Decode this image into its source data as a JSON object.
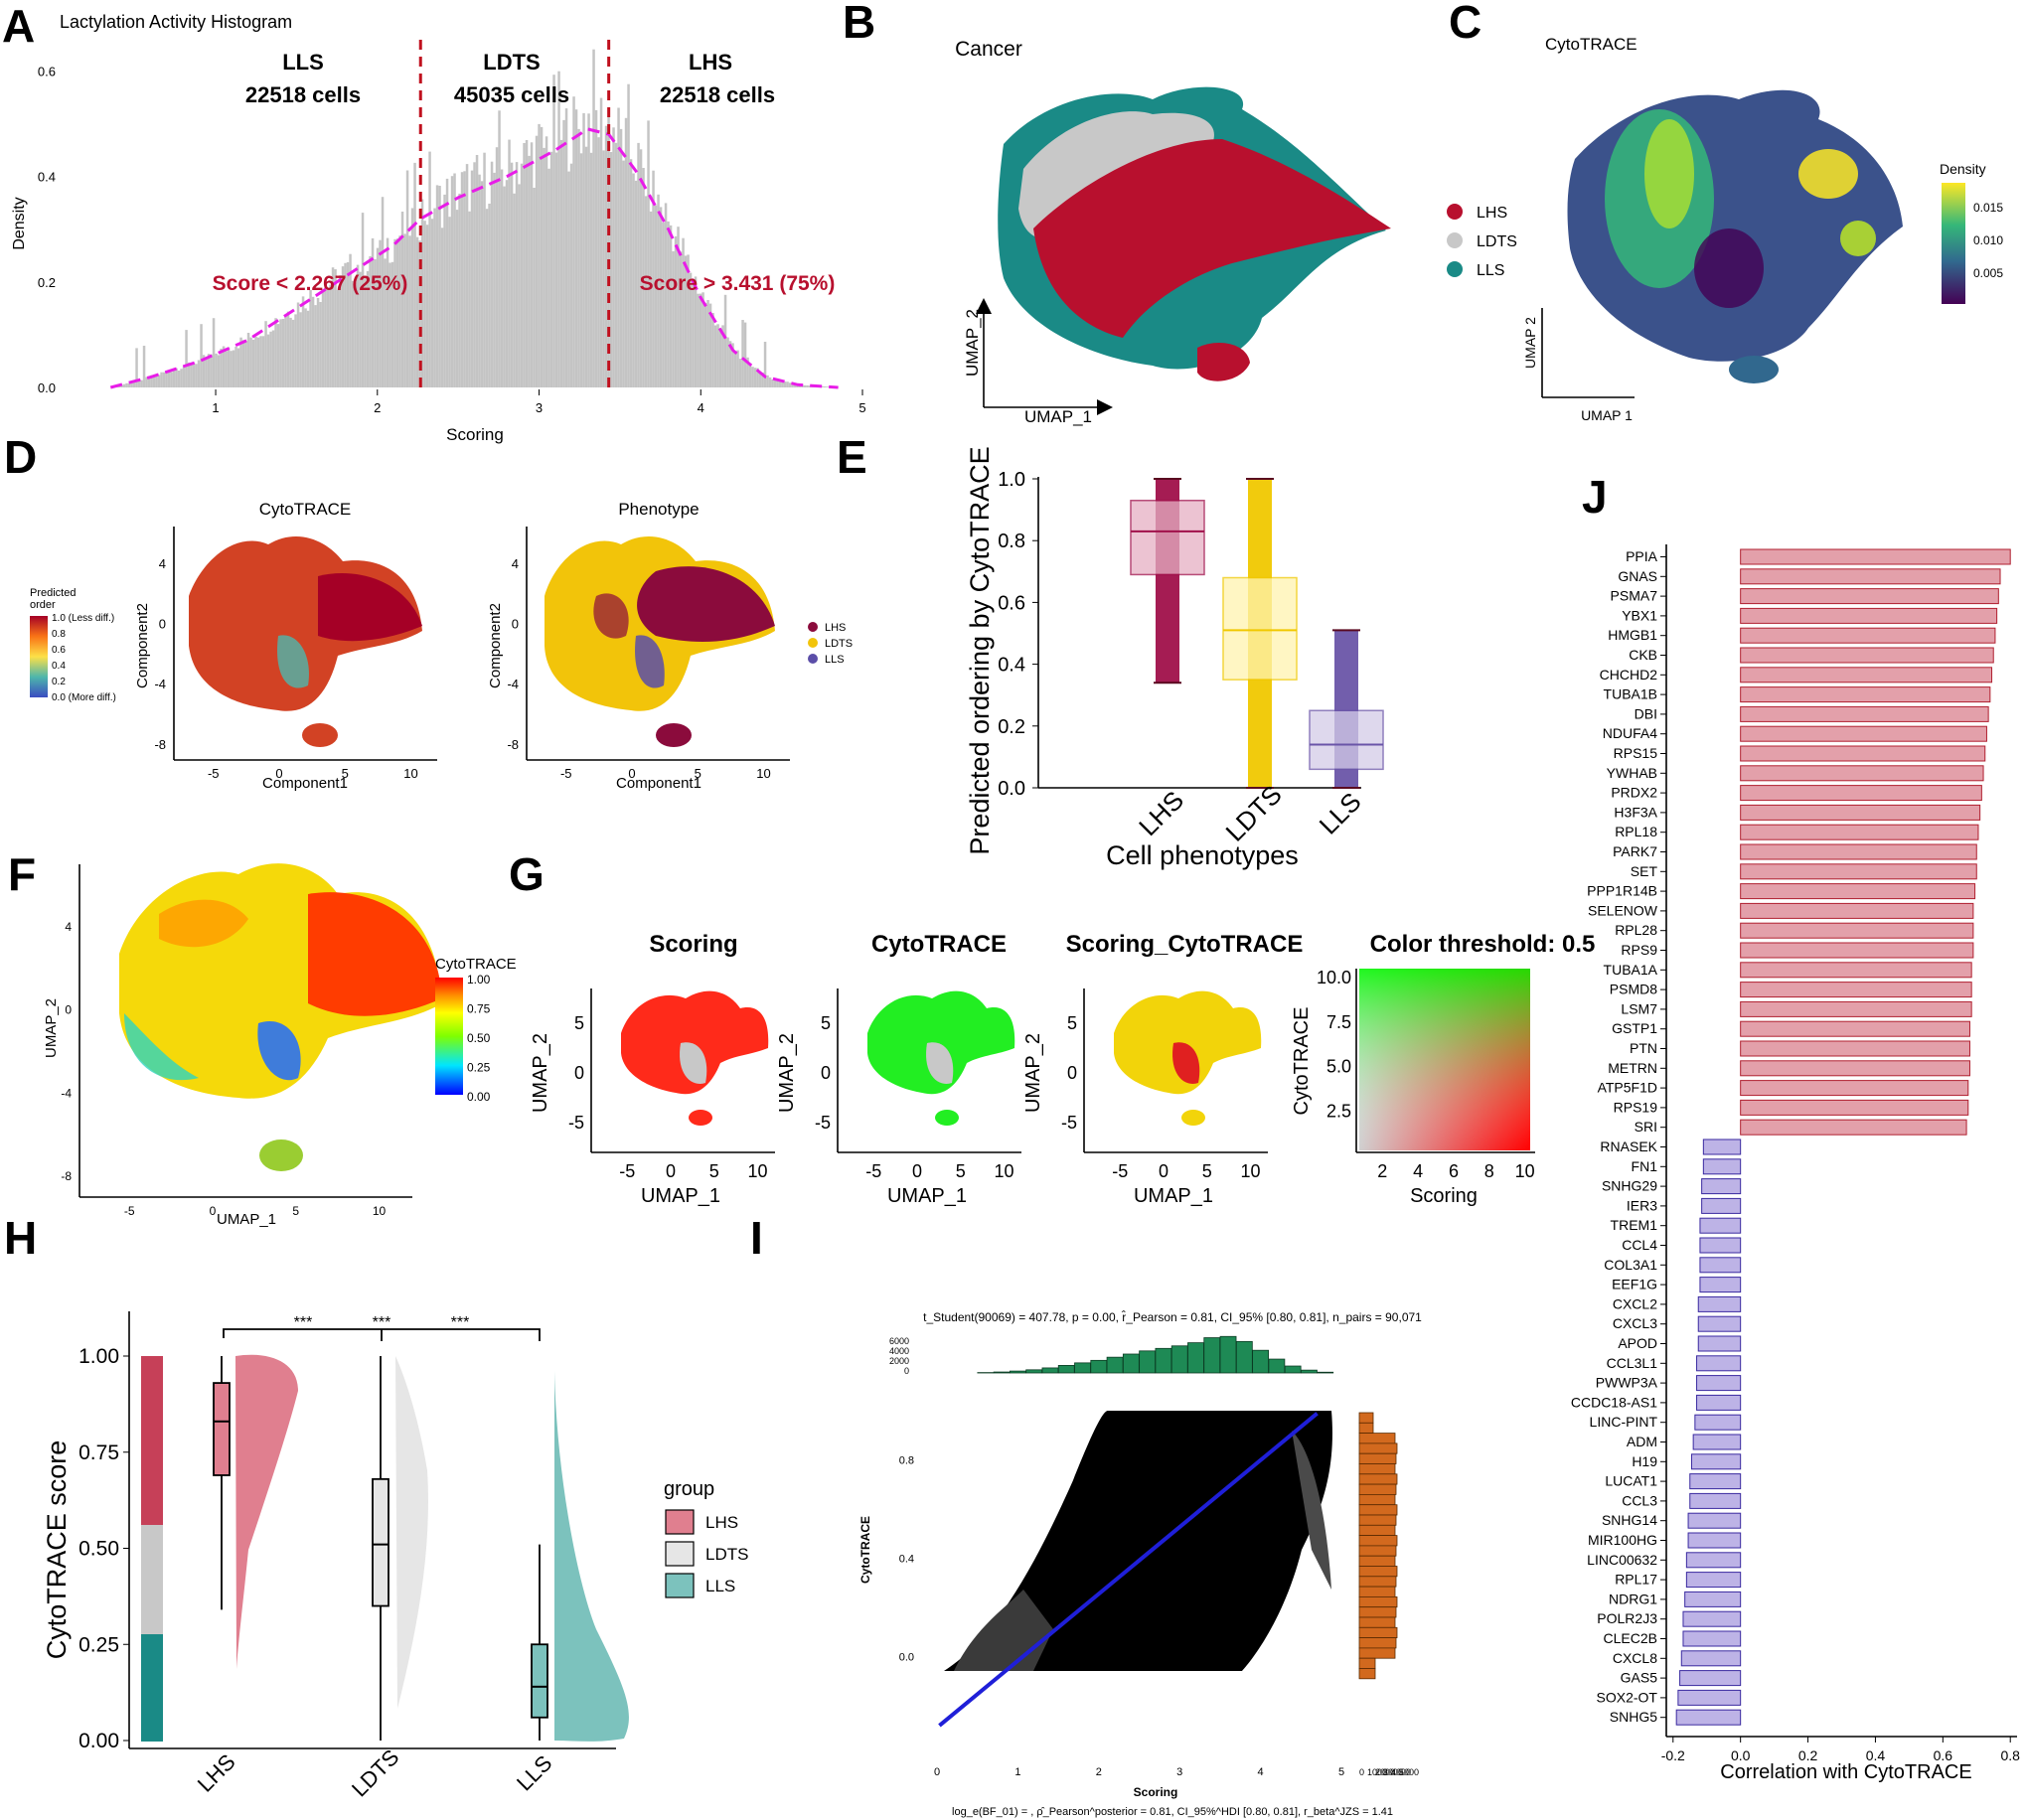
{
  "colors": {
    "lhs": "#b8102e",
    "ldts": "#c8c8c8",
    "lls": "#1a8a86",
    "magenta": "#e81ce8",
    "red_dash": "#c0101e",
    "gray_bar": "#c4c4c4",
    "green_hist": "#1e8a55",
    "orange_hist": "#d2691e",
    "blue_line": "#1f1fd8",
    "pos_bar": "#e3a0aa",
    "neg_bar": "#bdb3e6"
  },
  "panels": {
    "A": "A",
    "B": "B",
    "C": "C",
    "D": "D",
    "E": "E",
    "F": "F",
    "G": "G",
    "H": "H",
    "I": "I",
    "J": "J"
  },
  "chart_data": [
    {
      "panel": "A",
      "type": "bar",
      "title": "Lactylation Activity Histogram",
      "xlabel": "Scoring",
      "ylabel": "Density",
      "xlim": [
        0.25,
        5.0
      ],
      "ylim": [
        0,
        0.65
      ],
      "xticks": [
        "1",
        "2",
        "3",
        "4",
        "5"
      ],
      "yticks": [
        "0.0",
        "0.2",
        "0.4",
        "0.6"
      ],
      "density_curve": {
        "x": [
          0.35,
          0.6,
          0.9,
          1.2,
          1.5,
          1.8,
          2.1,
          2.267,
          2.5,
          2.8,
          3.1,
          3.3,
          3.431,
          3.6,
          3.8,
          4.0,
          4.2,
          4.4,
          4.6,
          4.85
        ],
        "y": [
          0.0,
          0.02,
          0.05,
          0.09,
          0.15,
          0.21,
          0.27,
          0.32,
          0.36,
          0.4,
          0.45,
          0.49,
          0.48,
          0.41,
          0.3,
          0.17,
          0.07,
          0.02,
          0.005,
          0.0
        ]
      },
      "thresholds": [
        2.267,
        3.431
      ],
      "groups": [
        {
          "name": "LLS",
          "cells": "22518 cells"
        },
        {
          "name": "LDTS",
          "cells": "45035 cells"
        },
        {
          "name": "LHS",
          "cells": "22518 cells"
        }
      ],
      "annotations": [
        "Score < 2.267 (25%)",
        "Score > 3.431 (75%)"
      ]
    },
    {
      "panel": "B",
      "type": "scatter",
      "title": "Cancer",
      "xlabel": "UMAP_1",
      "ylabel": "UMAP_2",
      "legend": [
        "LHS",
        "LDTS",
        "LLS"
      ]
    },
    {
      "panel": "C",
      "type": "scatter",
      "title": "CytoTRACE",
      "xlabel": "UMAP 1",
      "ylabel": "UMAP 2",
      "legend_title": "Density",
      "legend_ticks": [
        "0.015",
        "0.010",
        "0.005"
      ]
    },
    {
      "panel": "D1",
      "type": "scatter",
      "title": "CytoTRACE",
      "xlabel": "Component1",
      "ylabel": "Component2",
      "xticks": [
        "-5",
        "0",
        "5",
        "10"
      ],
      "yticks": [
        "4",
        "0",
        "-4",
        "-8"
      ],
      "legend_title": "Predicted\norder",
      "legend_ticks": [
        "1.0 (Less diff.)",
        "0.8",
        "0.6",
        "0.4",
        "0.2",
        "0.0 (More diff.)"
      ]
    },
    {
      "panel": "D2",
      "type": "scatter",
      "title": "Phenotype",
      "xlabel": "Component1",
      "ylabel": "Component2",
      "xticks": [
        "-5",
        "0",
        "5",
        "10"
      ],
      "yticks": [
        "4",
        "0",
        "-4",
        "-8"
      ],
      "legend": [
        "LHS",
        "LDTS",
        "LLS"
      ]
    },
    {
      "panel": "E",
      "type": "box",
      "xlabel": "Cell phenotypes",
      "ylabel": "Predicted ordering by CytoTRACE",
      "ylim": [
        0,
        1
      ],
      "yticks": [
        "0.0",
        "0.2",
        "0.4",
        "0.6",
        "0.8",
        "1.0"
      ],
      "categories": [
        "LHS",
        "LDTS",
        "LLS"
      ],
      "boxes": [
        {
          "name": "LHS",
          "q1": 0.69,
          "median": 0.83,
          "q3": 0.93,
          "lo": 0.34,
          "hi": 1.0
        },
        {
          "name": "LDTS",
          "q1": 0.35,
          "median": 0.51,
          "q3": 0.68,
          "lo": 0.0,
          "hi": 1.0
        },
        {
          "name": "LLS",
          "q1": 0.06,
          "median": 0.14,
          "q3": 0.25,
          "lo": 0.0,
          "hi": 0.51
        }
      ]
    },
    {
      "panel": "F",
      "type": "scatter",
      "xlabel": "UMAP_1",
      "ylabel": "UMAP_2",
      "xticks": [
        "-5",
        "0",
        "5",
        "10"
      ],
      "yticks": [
        "4",
        "0",
        "-4",
        "-8"
      ],
      "legend_title": "CytoTRACE",
      "legend_ticks": [
        "1.00",
        "0.75",
        "0.50",
        "0.25",
        "0.00"
      ]
    },
    {
      "panel": "G",
      "type": "scatter",
      "subplots": [
        "Scoring",
        "CytoTRACE",
        "Scoring_CytoTRACE"
      ],
      "xlabel": "UMAP_1",
      "ylabel": "UMAP_2",
      "xticks": [
        "-5",
        "0",
        "5",
        "10"
      ],
      "yticks": [
        "5",
        "0",
        "-5"
      ],
      "colormap_title": "Color threshold: 0.5",
      "colormap_xlabel": "Scoring",
      "colormap_ylabel": "CytoTRACE",
      "colormap_xticks": [
        "2",
        "4",
        "6",
        "8",
        "10"
      ],
      "colormap_yticks": [
        "10.0",
        "7.5",
        "5.0",
        "2.5"
      ]
    },
    {
      "panel": "H",
      "type": "box",
      "ylabel": "CytoTRACE score",
      "ylim": [
        0,
        1
      ],
      "yticks": [
        "1.00",
        "0.75",
        "0.50",
        "0.25",
        "0.00"
      ],
      "categories": [
        "LHS",
        "LDTS",
        "LLS"
      ],
      "legend_title": "group",
      "significance": [
        "***",
        "***",
        "***"
      ],
      "boxes": [
        {
          "name": "LHS",
          "q1": 0.69,
          "median": 0.83,
          "q3": 0.93,
          "lo": 0.34,
          "hi": 1.0
        },
        {
          "name": "LDTS",
          "q1": 0.35,
          "median": 0.51,
          "q3": 0.68,
          "lo": 0.0,
          "hi": 1.0
        },
        {
          "name": "LLS",
          "q1": 0.06,
          "median": 0.14,
          "q3": 0.25,
          "lo": 0.0,
          "hi": 0.51
        }
      ]
    },
    {
      "panel": "I",
      "type": "scatter",
      "xlabel": "Scoring",
      "ylabel": "CytoTRACE",
      "xticks": [
        "0",
        "1",
        "2",
        "3",
        "4",
        "5"
      ],
      "yticks": [
        "0.8",
        "0.4",
        "0.0"
      ],
      "top_hist_ticks": [
        "6000",
        "4000",
        "2000",
        "0"
      ],
      "side_hist_ticks": [
        "0",
        "1000",
        "2000",
        "3000",
        "4000",
        "5000"
      ],
      "stats_top": "t_Student(90069) = 407.78, p = 0.00, r̂_Pearson = 0.81, CI_95% [0.80, 0.81], n_pairs = 90,071",
      "stats_bottom": "log_e(BF_01) = , ρ̂_Pearson^posterior = 0.81, CI_95%^HDI [0.80, 0.81], r_beta^JZS = 1.41",
      "regression": {
        "x": [
          0,
          5
        ],
        "y": [
          -0.28,
          1.07
        ]
      },
      "top_hist": {
        "x": [
          0.6,
          0.8,
          1.0,
          1.2,
          1.4,
          1.6,
          1.8,
          2.0,
          2.2,
          2.4,
          2.6,
          2.8,
          3.0,
          3.2,
          3.4,
          3.6,
          3.8,
          4.0,
          4.2,
          4.4,
          4.6,
          4.8
        ],
        "y": [
          60,
          150,
          300,
          500,
          800,
          1200,
          1600,
          2000,
          2500,
          3000,
          3500,
          3900,
          4300,
          4800,
          5600,
          5800,
          5000,
          3600,
          2200,
          1100,
          450,
          120
        ]
      }
    },
    {
      "panel": "J",
      "type": "bar",
      "xlabel": "Correlation with CytoTRACE",
      "xlim": [
        -0.22,
        0.82
      ],
      "xticks": [
        "-0.2",
        "0.0",
        "0.2",
        "0.4",
        "0.6",
        "0.8"
      ],
      "categories": [
        "PPIA",
        "GNAS",
        "PSMA7",
        "YBX1",
        "HMGB1",
        "CKB",
        "CHCHD2",
        "TUBA1B",
        "DBI",
        "NDUFA4",
        "RPS15",
        "YWHAB",
        "PRDX2",
        "H3F3A",
        "RPL18",
        "PARK7",
        "SET",
        "PPP1R14B",
        "SELENOW",
        "RPL28",
        "RPS9",
        "TUBA1A",
        "PSMD8",
        "LSM7",
        "GSTP1",
        "PTN",
        "METRN",
        "ATP5F1D",
        "RPS19",
        "SRI",
        "RNASEK",
        "FN1",
        "SNHG29",
        "IER3",
        "TREM1",
        "CCL4",
        "COL3A1",
        "EEF1G",
        "CXCL2",
        "CXCL3",
        "APOD",
        "CCL3L1",
        "PWWP3A",
        "CCDC18-AS1",
        "LINC-PINT",
        "ADM",
        "H19",
        "LUCAT1",
        "CCL3",
        "SNHG14",
        "MIR100HG",
        "LINC00632",
        "RPL17",
        "NDRG1",
        "POLR2J3",
        "CLEC2B",
        "CXCL8",
        "GAS5",
        "SOX2-OT",
        "SNHG5"
      ],
      "values": [
        0.8,
        0.77,
        0.765,
        0.76,
        0.755,
        0.75,
        0.745,
        0.74,
        0.735,
        0.73,
        0.725,
        0.72,
        0.715,
        0.71,
        0.705,
        0.7,
        0.7,
        0.695,
        0.69,
        0.69,
        0.69,
        0.685,
        0.685,
        0.685,
        0.68,
        0.68,
        0.68,
        0.675,
        0.675,
        0.67,
        -0.11,
        -0.11,
        -0.115,
        -0.115,
        -0.12,
        -0.12,
        -0.12,
        -0.12,
        -0.125,
        -0.125,
        -0.125,
        -0.13,
        -0.13,
        -0.13,
        -0.135,
        -0.14,
        -0.145,
        -0.15,
        -0.15,
        -0.155,
        -0.155,
        -0.16,
        -0.16,
        -0.165,
        -0.17,
        -0.17,
        -0.175,
        -0.18,
        -0.185,
        -0.19
      ]
    }
  ]
}
